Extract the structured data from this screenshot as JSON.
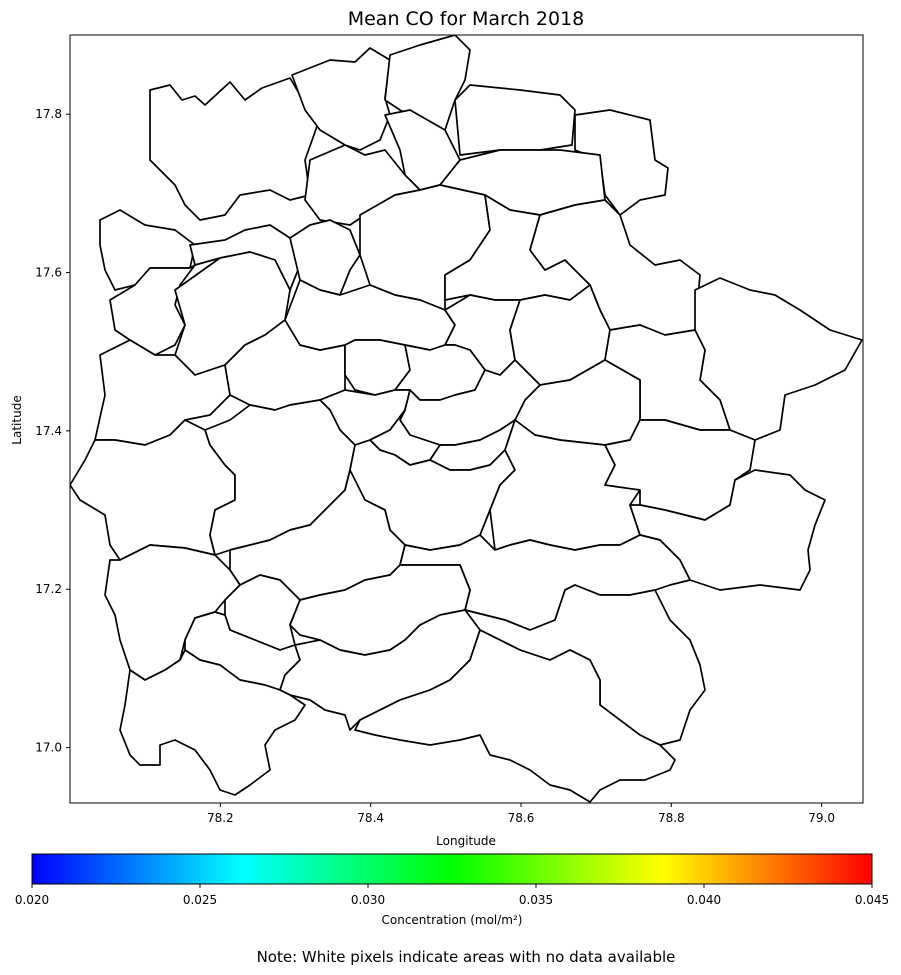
{
  "title": "Mean CO for March 2018",
  "map": {
    "xlabel": "Longitude",
    "ylabel": "Latitude",
    "xlim": [
      78.0,
      79.055
    ],
    "ylim": [
      16.93,
      17.9
    ],
    "x_ticks": [
      {
        "value": 78.2,
        "label": "78.2"
      },
      {
        "value": 78.4,
        "label": "78.4"
      },
      {
        "value": 78.6,
        "label": "78.6"
      },
      {
        "value": 78.8,
        "label": "78.8"
      },
      {
        "value": 79.0,
        "label": "79.0"
      }
    ],
    "y_ticks": [
      {
        "value": 17.0,
        "label": "17.0"
      },
      {
        "value": 17.2,
        "label": "17.2"
      },
      {
        "value": 17.4,
        "label": "17.4"
      },
      {
        "value": 17.6,
        "label": "17.6"
      },
      {
        "value": 17.8,
        "label": "17.8"
      }
    ],
    "data_fill": "none (all regions white)",
    "boundary_color": "#000000"
  },
  "colorbar": {
    "label": "Concentration (mol/m²)",
    "range": [
      0.02,
      0.045
    ],
    "colormap": [
      "#0000ff",
      "#00ffff",
      "#00ff00",
      "#ffff00",
      "#ff0000"
    ],
    "ticks": [
      {
        "value": 0.02,
        "label": "0.020"
      },
      {
        "value": 0.025,
        "label": "0.025"
      },
      {
        "value": 0.03,
        "label": "0.030"
      },
      {
        "value": 0.035,
        "label": "0.035"
      },
      {
        "value": 0.04,
        "label": "0.040"
      },
      {
        "value": 0.045,
        "label": "0.045"
      }
    ]
  },
  "note": "Note: White pixels indicate areas with no data available"
}
